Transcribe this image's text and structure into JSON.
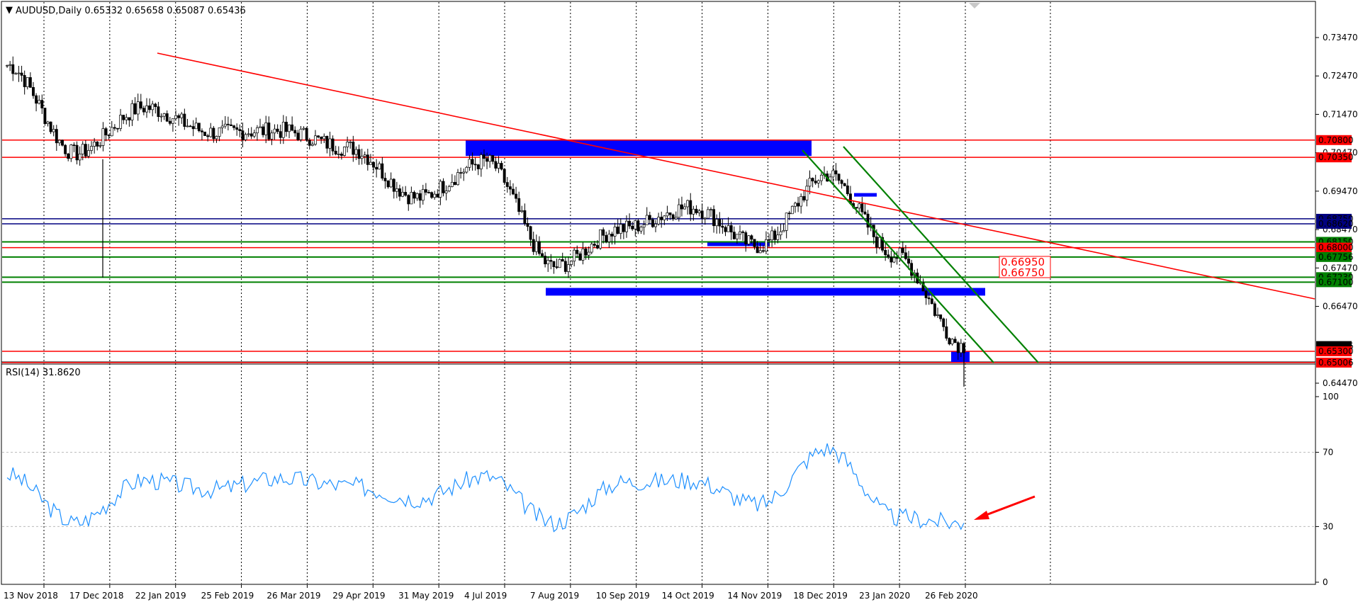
{
  "header": {
    "menu_glyph": "▼",
    "symbol_info": "AUDUSD,Daily  0.65332 0.65658 0.65087 0.65436"
  },
  "price_axis": {
    "ticks": [
      "0.73470",
      "0.72470",
      "0.71470",
      "0.70470",
      "0.69470",
      "0.68470",
      "0.67470",
      "0.66470",
      "0.65436",
      "0.64470"
    ]
  },
  "price_labels": [
    {
      "text": "0.70800",
      "bg": "#ff0000",
      "fg": "#ffffff"
    },
    {
      "text": "0.70350",
      "bg": "#ff0000",
      "fg": "#ffffff"
    },
    {
      "text": "0.68750",
      "bg": "#000080",
      "fg": "#ffffff"
    },
    {
      "text": "0.68620",
      "bg": "#000080",
      "fg": "#ffffff"
    },
    {
      "text": "0.68150",
      "bg": "#008000",
      "fg": "#ffffff"
    },
    {
      "text": "0.68000",
      "bg": "#ff0000",
      "fg": "#ffffff"
    },
    {
      "text": "0.67756",
      "bg": "#008000",
      "fg": "#ffffff"
    },
    {
      "text": "0.67230",
      "bg": "#008000",
      "fg": "#ffffff"
    },
    {
      "text": "0.67100",
      "bg": "#008000",
      "fg": "#ffffff"
    },
    {
      "text": "0.65436",
      "bg": "#000000",
      "fg": "#ffffff"
    },
    {
      "text": "0.65300",
      "bg": "#ff0000",
      "fg": "#ffffff"
    },
    {
      "text": "0.65006",
      "bg": "#ff0000",
      "fg": "#ffffff"
    }
  ],
  "zone_labels": [
    "0.66950",
    "0.66750"
  ],
  "rsi": {
    "title": "RSI(14) 31.8620",
    "levels": [
      "100",
      "70",
      "30",
      "0"
    ]
  },
  "dates": [
    "13 Nov 2018",
    "17 Dec 2018",
    "22 Jan 2019",
    "25 Feb 2019",
    "26 Mar 2019",
    "29 Apr 2019",
    "31 May 2019",
    "4 Jul 2019",
    "7 Aug 2019",
    "10 Sep 2019",
    "14 Oct 2019",
    "14 Nov 2019",
    "18 Dec 2019",
    "23 Jan 2020",
    "26 Feb 2020"
  ],
  "colors": {
    "resistance": "#ff0000",
    "support": "#008000",
    "pivot": "#000080",
    "zone": "#0000ff",
    "candle": "#000000",
    "rsi_line": "#1e90ff",
    "arrow": "#ff0000"
  },
  "chart_data": {
    "type": "line",
    "symbol": "AUDUSD",
    "timeframe": "Daily",
    "ohlc_last": {
      "open": 0.65332,
      "high": 0.65658,
      "low": 0.65087,
      "close": 0.65436
    },
    "x": [
      "13 Nov 2018",
      "17 Dec 2018",
      "22 Jan 2019",
      "25 Feb 2019",
      "26 Mar 2019",
      "29 Apr 2019",
      "31 May 2019",
      "4 Jul 2019",
      "7 Aug 2019",
      "10 Sep 2019",
      "14 Oct 2019",
      "14 Nov 2019",
      "18 Dec 2019",
      "23 Jan 2020",
      "26 Feb 2020"
    ],
    "series": [
      {
        "name": "AUDUSD",
        "values": [
          0.7275,
          0.7045,
          0.7165,
          0.71,
          0.7105,
          0.706,
          0.693,
          0.7025,
          0.675,
          0.685,
          0.6905,
          0.6805,
          0.699,
          0.678,
          0.6544
        ]
      },
      {
        "name": "RSI(14)",
        "values": [
          58,
          32,
          55,
          50,
          56,
          52,
          45,
          57,
          32,
          54,
          55,
          42,
          72,
          35,
          31.862
        ]
      }
    ],
    "ylim": [
      0.6405,
      0.751
    ],
    "rsi_ylim": [
      0,
      100
    ],
    "horizontal_levels": [
      0.708,
      0.7035,
      0.6875,
      0.6862,
      0.6815,
      0.68,
      0.67756,
      0.6723,
      0.671,
      0.653,
      0.65006
    ],
    "zones": [
      [
        0.6695,
        0.6675
      ]
    ],
    "rsi_levels": [
      70,
      30
    ],
    "grid": true
  }
}
